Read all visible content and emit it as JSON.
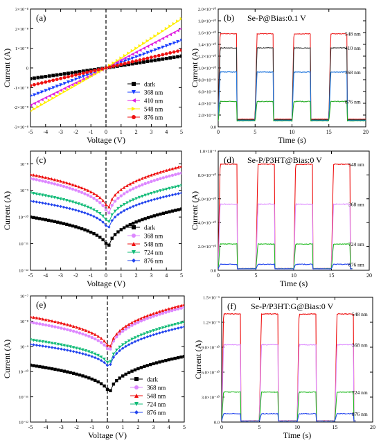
{
  "panels": [
    {
      "id": "a",
      "label": "(a)",
      "type": "line",
      "scale": "linear",
      "xlabel": "Voltage (V)",
      "ylabel": "Current (A)",
      "xlim": [
        -5,
        5
      ],
      "ylim": [
        -3e-08,
        3e-08
      ],
      "xticks": [
        -5,
        -4,
        -3,
        -2,
        -1,
        0,
        1,
        2,
        3,
        4,
        5
      ],
      "yticks": [
        -3e-08,
        -2e-08,
        -1e-08,
        0,
        1e-08,
        2e-08,
        3e-08
      ],
      "ytick_labels": [
        "-3×10⁻⁸",
        "-2×10⁻⁸",
        "-1×10⁻⁸",
        "0",
        "1×10⁻⁸",
        "2×10⁻⁸",
        "3×10⁻⁸"
      ],
      "legend": {
        "position": "bottom-right"
      },
      "series": [
        {
          "name": "dark",
          "color": "#000000",
          "marker": "square",
          "x": [
            -5,
            0,
            5
          ],
          "y": [
            -5.5e-09,
            0,
            6e-09
          ]
        },
        {
          "name": "368 nm",
          "color": "#1a3fff",
          "marker": "triangle-down",
          "x": [
            -5,
            0,
            5
          ],
          "y": [
            -1.45e-08,
            0,
            1.4e-08
          ]
        },
        {
          "name": "410 nm",
          "color": "#e022e0",
          "marker": "triangle-left",
          "x": [
            -5,
            0,
            5
          ],
          "y": [
            -1.9e-08,
            0,
            2e-08
          ]
        },
        {
          "name": "548 nm",
          "color": "#ffee00",
          "marker": "triangle-right",
          "x": [
            -5,
            0,
            5
          ],
          "y": [
            -2.2e-08,
            0,
            2.5e-08
          ]
        },
        {
          "name": "876 nm",
          "color": "#ee1111",
          "marker": "circle",
          "x": [
            -5,
            0,
            5
          ],
          "y": [
            -9e-09,
            0,
            9e-09
          ]
        }
      ]
    },
    {
      "id": "b",
      "label": "(b)",
      "title": "Se-P@Bias:0.1 V",
      "type": "line",
      "scale": "linear",
      "xlabel": "Time (s)",
      "ylabel": "Current (A)",
      "xlim": [
        0,
        20
      ],
      "ylim": [
        0,
        2e-10
      ],
      "xticks": [
        0,
        5,
        10,
        15,
        20
      ],
      "yticks": [
        0,
        2e-11,
        4e-11,
        6e-11,
        8e-11,
        1e-10,
        1.2e-10,
        1.4e-10,
        1.6e-10,
        1.8e-10,
        2e-10
      ],
      "ytick_labels": [
        "0.0",
        "2.0×10⁻¹¹",
        "4.0×10⁻¹¹",
        "6.0×10⁻¹¹",
        "8.0×10⁻¹¹",
        "1.0×10⁻¹⁰",
        "1.2×10⁻¹⁰",
        "1.4×10⁻¹⁰",
        "1.6×10⁻¹⁰",
        "1.8×10⁻¹⁰",
        "2.0×10⁻¹⁰"
      ],
      "on_intervals": [
        [
          0,
          2.5
        ],
        [
          5,
          7.5
        ],
        [
          10,
          12.5
        ],
        [
          15,
          17.5
        ]
      ],
      "t_end": 20,
      "series": [
        {
          "name": "548 nm",
          "color": "#ee2222",
          "on": 1.58e-10,
          "off": 1.3e-11
        },
        {
          "name": "410 nm",
          "color": "#333333",
          "on": 1.34e-10,
          "off": 1.2e-11
        },
        {
          "name": "368 nm",
          "color": "#2277dd",
          "on": 9.3e-11,
          "off": 1.1e-11
        },
        {
          "name": "876 nm",
          "color": "#22aa22",
          "on": 4.3e-11,
          "off": 1e-11
        }
      ],
      "series_labels": [
        "548 nm",
        "410 nm",
        "368 nm",
        "876 nm"
      ]
    },
    {
      "id": "c",
      "label": "(c)",
      "type": "line",
      "scale": "log",
      "xlabel": "Voltage (V)",
      "ylabel": "Current (A)",
      "xlim": [
        -5,
        5
      ],
      "ylim": [
        1e-12,
        3e-08
      ],
      "xticks": [
        -5,
        -4,
        -3,
        -2,
        -1,
        0,
        1,
        2,
        3,
        4,
        5
      ],
      "yticks": [
        1e-12,
        1e-11,
        1e-10,
        1e-09,
        1e-08
      ],
      "ytick_labels": [
        "10⁻¹²",
        "10⁻¹¹",
        "10⁻¹⁰",
        "10⁻⁹",
        "10⁻⁸"
      ],
      "legend": {
        "position": "bottom-right"
      },
      "series": [
        {
          "name": "dark",
          "color": "#000000",
          "marker": "square",
          "left": 1e-10,
          "right": 2e-10,
          "min": 4e-12
        },
        {
          "name": "368 nm",
          "color": "#dd88ff",
          "marker": "circle",
          "left": 2.8e-09,
          "right": 4.5e-09,
          "min": 6e-11
        },
        {
          "name": "548 nm",
          "color": "#ee1111",
          "marker": "triangle-up",
          "left": 4e-09,
          "right": 8e-09,
          "min": 1e-10
        },
        {
          "name": "724 nm",
          "color": "#11bb77",
          "marker": "triangle-down",
          "left": 8e-10,
          "right": 1.5e-09,
          "min": 3e-11
        },
        {
          "name": "876 nm",
          "color": "#2244ee",
          "marker": "diamond",
          "left": 4e-10,
          "right": 8e-10,
          "min": 2e-11
        }
      ]
    },
    {
      "id": "d",
      "label": "(d)",
      "title": "Se-P/P3HT@Bias:0 V",
      "type": "line",
      "scale": "linear",
      "xlabel": "Time (s)",
      "ylabel": "Current (A)",
      "xlim": [
        0,
        20
      ],
      "ylim": [
        0,
        1e-09
      ],
      "xticks": [
        0,
        5,
        10,
        15,
        20
      ],
      "yticks": [
        0,
        2e-10,
        4e-10,
        6e-10,
        8e-10,
        1e-09
      ],
      "ytick_labels": [
        "0.0",
        "2.0×10⁻¹⁰",
        "4.0×10⁻¹⁰",
        "6.0×10⁻¹⁰",
        "8.0×10⁻¹⁰",
        "1.0×10⁻⁹"
      ],
      "on_intervals": [
        [
          0,
          2.5
        ],
        [
          5,
          7.5
        ],
        [
          10,
          12.5
        ],
        [
          15,
          17.5
        ]
      ],
      "t_end": 17.8,
      "series": [
        {
          "name": "548 nm",
          "color": "#ee1111",
          "on": 8.9e-10,
          "off": 1.5e-11
        },
        {
          "name": "368 nm",
          "color": "#dd88ff",
          "on": 5.55e-10,
          "off": 1.4e-11
        },
        {
          "name": "724 nm",
          "color": "#22bb22",
          "on": 2.2e-10,
          "off": 1.3e-11
        },
        {
          "name": "876 nm",
          "color": "#2244ee",
          "on": 5e-11,
          "off": 1.2e-11
        }
      ],
      "series_labels": [
        "548 nm",
        "368 nm",
        "724 nm",
        "876 nm"
      ]
    },
    {
      "id": "e",
      "label": "(e)",
      "type": "line",
      "scale": "log",
      "xlabel": "Voltage (V)",
      "ylabel": "Current (A)",
      "xlim": [
        -5,
        5
      ],
      "ylim": [
        1e-12,
        1e-07
      ],
      "xticks": [
        -5,
        -4,
        -3,
        -2,
        -1,
        0,
        1,
        2,
        3,
        4,
        5
      ],
      "yticks": [
        1e-12,
        1e-11,
        1e-10,
        1e-09,
        1e-08,
        1e-07
      ],
      "ytick_labels": [
        "10⁻¹²",
        "10⁻¹¹",
        "10⁻¹⁰",
        "10⁻⁹",
        "10⁻⁸",
        "10⁻⁷"
      ],
      "legend": {
        "position": "bottom-right"
      },
      "series": [
        {
          "name": "dark",
          "color": "#000000",
          "marker": "square",
          "left": 1.8e-10,
          "right": 4e-10,
          "min": 8e-12
        },
        {
          "name": "368 nm",
          "color": "#dd88ff",
          "marker": "circle",
          "left": 9e-09,
          "right": 3.5e-08,
          "min": 3e-10
        },
        {
          "name": "548 nm",
          "color": "#ee1111",
          "marker": "triangle-up",
          "left": 1.5e-08,
          "right": 4.5e-08,
          "min": 4e-10
        },
        {
          "name": "724 nm",
          "color": "#11bb77",
          "marker": "triangle-down",
          "left": 1.8e-09,
          "right": 9e-09,
          "min": 1e-10
        },
        {
          "name": "876 nm",
          "color": "#2244ee",
          "marker": "diamond",
          "left": 1.2e-09,
          "right": 6e-09,
          "min": 8e-11
        }
      ]
    },
    {
      "id": "f",
      "label": "(f)",
      "title": "Se-P/P3HT:G@Bias:0 V",
      "type": "line",
      "scale": "linear",
      "xlabel": "Time (s)",
      "ylabel": "Current (A)",
      "xlim": [
        0,
        20
      ],
      "ylim": [
        0,
        1.5e-09
      ],
      "xticks": [
        0,
        5,
        10,
        15,
        20
      ],
      "yticks": [
        0,
        3e-10,
        6e-10,
        9e-10,
        1.2e-09,
        1.5e-09
      ],
      "ytick_labels": [
        "0.0",
        "3.0×10⁻¹⁰",
        "6.0×10⁻¹⁰",
        "9.0×10⁻¹⁰",
        "1.2×10⁻⁹",
        "1.5×10⁻⁹"
      ],
      "on_intervals": [
        [
          0,
          2.5
        ],
        [
          5,
          7.5
        ],
        [
          10,
          12.5
        ],
        [
          15,
          17.5
        ]
      ],
      "t_end": 17.8,
      "series": [
        {
          "name": "548 nm",
          "color": "#ee1111",
          "on": 1.3e-09,
          "off": 1.5e-11
        },
        {
          "name": "368 nm",
          "color": "#dd88ff",
          "on": 9.3e-10,
          "off": 1.4e-11
        },
        {
          "name": "724 nm",
          "color": "#22bb22",
          "on": 3.6e-10,
          "off": 1.3e-11
        },
        {
          "name": "876 nm",
          "color": "#2244ee",
          "on": 1e-10,
          "off": 1.2e-11
        }
      ],
      "series_labels": [
        "548 nm",
        "368 nm",
        "724 nm",
        "876 nm"
      ]
    }
  ]
}
